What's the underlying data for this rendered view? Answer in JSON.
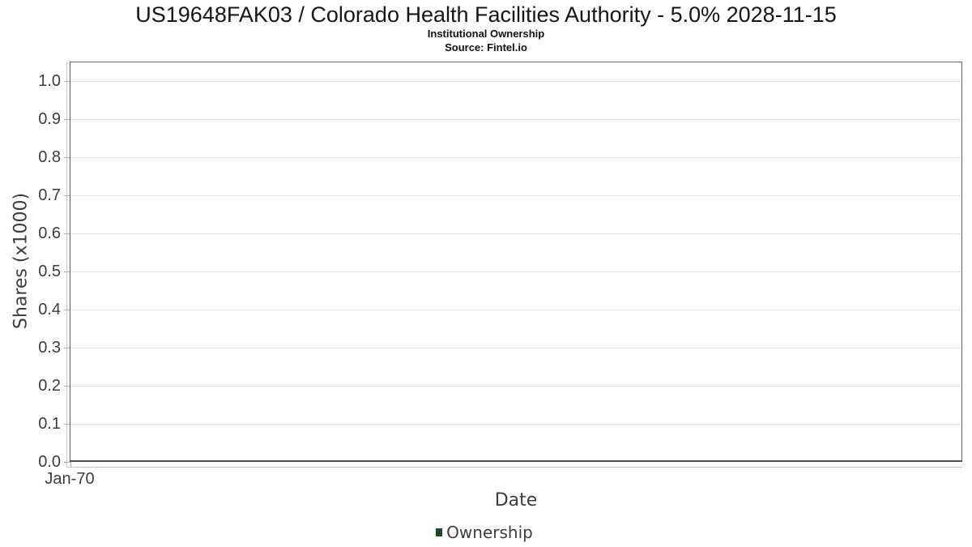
{
  "title": "US19648FAK03 / Colorado Health Facilities Authority - 5.0% 2028-11-15",
  "subtitle": "Institutional Ownership",
  "source": "Source: Fintel.io",
  "chart_data": {
    "type": "line",
    "title": "US19648FAK03 / Colorado Health Facilities Authority - 5.0% 2028-11-15",
    "subtitle": "Institutional Ownership",
    "source": "Source: Fintel.io",
    "xlabel": "Date",
    "ylabel": "Shares (x1000)",
    "x_ticks": [
      "Jan-70"
    ],
    "y_ticks": [
      "0.0",
      "0.1",
      "0.2",
      "0.3",
      "0.4",
      "0.5",
      "0.6",
      "0.7",
      "0.8",
      "0.9",
      "1.0"
    ],
    "ylim": [
      0.0,
      1.053
    ],
    "xlim_note": "single x tick at left edge",
    "grid": true,
    "legend_position": "bottom-center",
    "legend": [
      {
        "label": "Ownership",
        "color": "#1e4a28"
      }
    ],
    "series": [
      {
        "name": "Ownership",
        "x": [],
        "y": []
      }
    ]
  },
  "colors": {
    "background": "#ffffff",
    "plot_border": "#5c5c5c",
    "axis_line": "#c6c6c6",
    "gridline": "#e3e3e3",
    "tick_mark": "#a9a9a9",
    "axis_text": "#3d3d3d",
    "title_text": "#161616",
    "legend_swatch": "#1e4a28"
  }
}
